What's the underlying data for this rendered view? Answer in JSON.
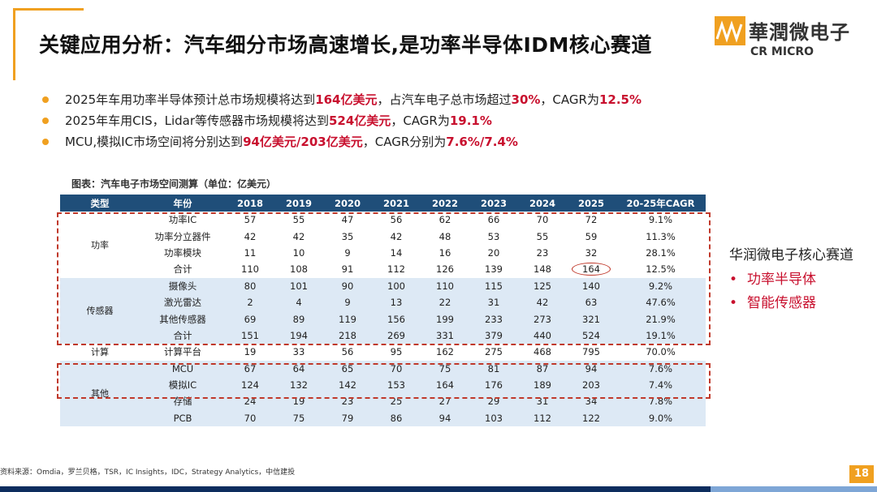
{
  "title": "关键应用分析：汽车细分市场高速增长,是功率半导体IDM核心赛道",
  "logo": {
    "cn": "華潤微电子",
    "en": "CR MICRO"
  },
  "bullets": [
    {
      "pre": "2025年车用功率半导体预计总市场规模将达到",
      "h1": "164亿美元",
      "mid": "，占汽车电子总市场超过",
      "h2": "30%",
      "mid2": "，CAGR为",
      "h3": "12.5%"
    },
    {
      "pre": "2025年车用CIS，Lidar等传感器市场规模将达到",
      "h1": "524亿美元",
      "mid": "，CAGR为",
      "h2": "19.1%",
      "mid2": "",
      "h3": ""
    },
    {
      "pre": "MCU,模拟IC市场空间将分别达到",
      "h1": "94亿美元/203亿美元",
      "mid": "，CAGR分别为",
      "h2": "7.6%/7.4%",
      "mid2": "",
      "h3": ""
    }
  ],
  "table": {
    "caption": "图表：汽车电子市场空间测算（单位：亿美元）",
    "headers": [
      "类型",
      "年份",
      "2018",
      "2019",
      "2020",
      "2021",
      "2022",
      "2023",
      "2024",
      "2025",
      "20-25年CAGR"
    ],
    "groups": [
      {
        "type": "功率",
        "rows": [
          {
            "name": "功率IC",
            "values": [
              "57",
              "55",
              "47",
              "56",
              "62",
              "66",
              "70",
              "72"
            ],
            "cagr": "9.1%"
          },
          {
            "name": "功率分立器件",
            "values": [
              "42",
              "42",
              "35",
              "42",
              "48",
              "53",
              "55",
              "59"
            ],
            "cagr": "11.3%"
          },
          {
            "name": "功率模块",
            "values": [
              "11",
              "10",
              "9",
              "14",
              "16",
              "20",
              "23",
              "32"
            ],
            "cagr": "28.1%"
          },
          {
            "name": "合计",
            "values": [
              "110",
              "108",
              "91",
              "112",
              "126",
              "139",
              "148",
              "164"
            ],
            "cagr": "12.5%"
          }
        ]
      },
      {
        "type": "传感器",
        "rows": [
          {
            "name": "摄像头",
            "values": [
              "80",
              "101",
              "90",
              "100",
              "110",
              "115",
              "125",
              "140"
            ],
            "cagr": "9.2%"
          },
          {
            "name": "激光雷达",
            "values": [
              "2",
              "4",
              "9",
              "13",
              "22",
              "31",
              "42",
              "63"
            ],
            "cagr": "47.6%"
          },
          {
            "name": "其他传感器",
            "values": [
              "69",
              "89",
              "119",
              "156",
              "199",
              "233",
              "273",
              "321"
            ],
            "cagr": "21.9%"
          },
          {
            "name": "合计",
            "values": [
              "151",
              "194",
              "218",
              "269",
              "331",
              "379",
              "440",
              "524"
            ],
            "cagr": "19.1%"
          }
        ]
      },
      {
        "type": "计算",
        "rows": [
          {
            "name": "计算平台",
            "values": [
              "19",
              "33",
              "56",
              "95",
              "162",
              "275",
              "468",
              "795"
            ],
            "cagr": "70.0%"
          }
        ]
      },
      {
        "type": "其他",
        "rows": [
          {
            "name": "MCU",
            "values": [
              "67",
              "64",
              "65",
              "70",
              "75",
              "81",
              "87",
              "94"
            ],
            "cagr": "7.6%"
          },
          {
            "name": "模拟IC",
            "values": [
              "124",
              "132",
              "142",
              "153",
              "164",
              "176",
              "189",
              "203"
            ],
            "cagr": "7.4%"
          },
          {
            "name": "存储",
            "values": [
              "24",
              "19",
              "23",
              "25",
              "27",
              "29",
              "31",
              "34"
            ],
            "cagr": "7.8%"
          },
          {
            "name": "PCB",
            "values": [
              "70",
              "75",
              "79",
              "86",
              "94",
              "103",
              "112",
              "122"
            ],
            "cagr": "9.0%"
          }
        ]
      }
    ]
  },
  "side": {
    "title": "华润微电子核心赛道",
    "items": [
      "功率半导体",
      "智能传感器"
    ],
    "bullet": "•"
  },
  "source": "资料来源：Omdia，罗兰贝格，TSR，IC Insights，IDC，Strategy Analytics，中信建投",
  "page_number": "18",
  "colors": {
    "accent": "#f0a020",
    "highlight": "#c8102e",
    "header": "#1f4e79",
    "band": "#dde9f5"
  }
}
